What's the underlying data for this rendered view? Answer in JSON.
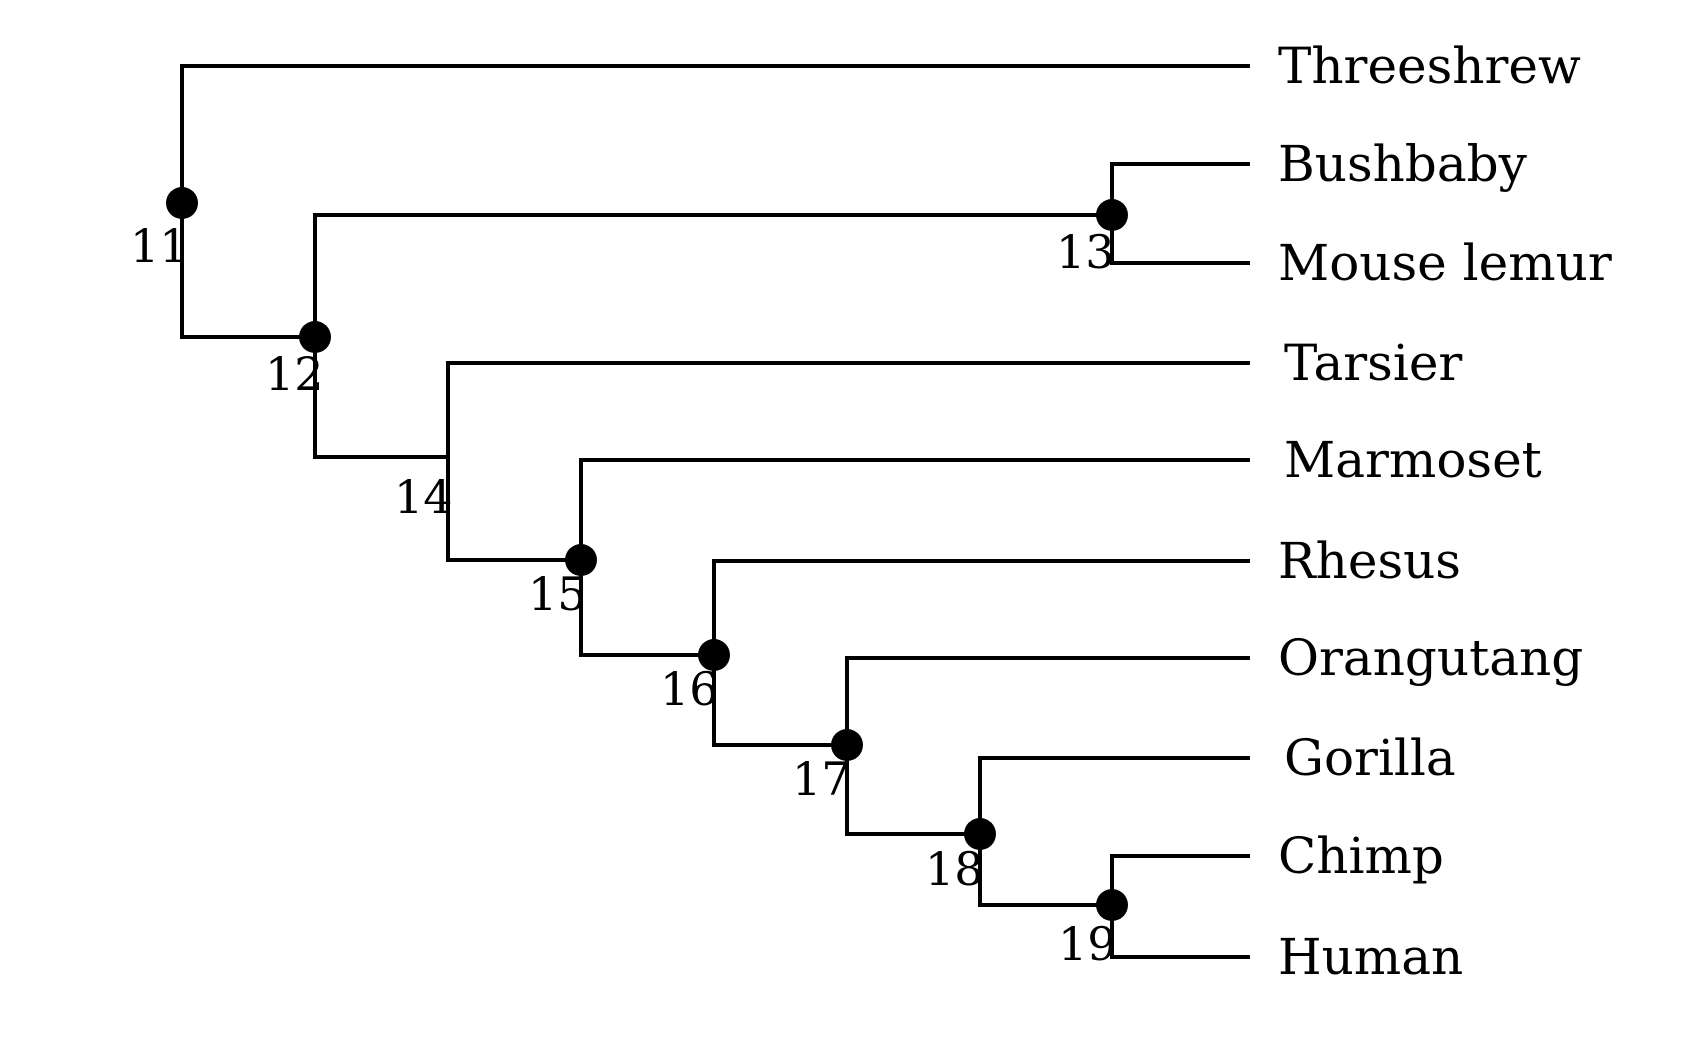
{
  "tree": {
    "leaves": [
      {
        "id": "threeshrew",
        "label": "Threeshrew"
      },
      {
        "id": "bushbaby",
        "label": "Bushbaby"
      },
      {
        "id": "mouse-lemur",
        "label": "Mouse lemur"
      },
      {
        "id": "tarsier",
        "label": "Tarsier"
      },
      {
        "id": "marmoset",
        "label": "Marmoset"
      },
      {
        "id": "rhesus",
        "label": "Rhesus"
      },
      {
        "id": "orangutang",
        "label": "Orangutang"
      },
      {
        "id": "gorilla",
        "label": "Gorilla"
      },
      {
        "id": "chimp",
        "label": "Chimp"
      },
      {
        "id": "human",
        "label": "Human"
      }
    ],
    "nodes": [
      {
        "id": "11",
        "label": "11",
        "children": [
          "threeshrew",
          "12"
        ],
        "dot": true
      },
      {
        "id": "12",
        "label": "12",
        "children": [
          "13",
          "14"
        ],
        "dot": true
      },
      {
        "id": "13",
        "label": "13",
        "children": [
          "bushbaby",
          "mouse-lemur"
        ],
        "dot": true
      },
      {
        "id": "14",
        "label": "14",
        "children": [
          "tarsier",
          "15"
        ],
        "dot": false
      },
      {
        "id": "15",
        "label": "15",
        "children": [
          "marmoset",
          "16"
        ],
        "dot": true
      },
      {
        "id": "16",
        "label": "16",
        "children": [
          "rhesus",
          "17"
        ],
        "dot": true
      },
      {
        "id": "17",
        "label": "17",
        "children": [
          "orangutang",
          "18"
        ],
        "dot": true
      },
      {
        "id": "18",
        "label": "18",
        "children": [
          "gorilla",
          "19"
        ],
        "dot": true
      },
      {
        "id": "19",
        "label": "19",
        "children": [
          "chimp",
          "human"
        ],
        "dot": true
      }
    ]
  },
  "colors": {
    "line": "#000000",
    "background": "#ffffff"
  }
}
